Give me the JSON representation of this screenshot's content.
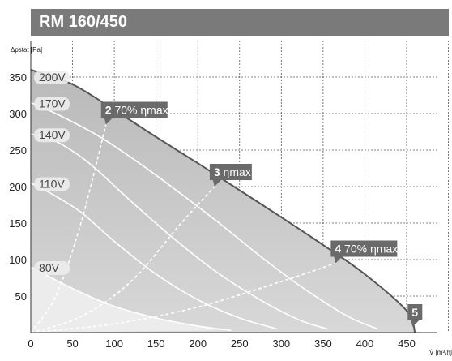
{
  "header": {
    "title": "RM 160/450"
  },
  "chart_data": {
    "type": "line",
    "title": "RM 160/450",
    "xlabel": "V̇ [m³/h]",
    "ylabel": "Δpstat [Pa]",
    "xlim": [
      0,
      480
    ],
    "ylim": [
      0,
      360
    ],
    "x_ticks": [
      0,
      50,
      100,
      150,
      200,
      250,
      300,
      350,
      400,
      450
    ],
    "y_ticks": [
      50,
      100,
      150,
      200,
      250,
      300,
      350
    ],
    "x_tick_labels": [
      "0",
      "50",
      "100",
      "150",
      "200",
      "250",
      "300",
      "350",
      "400",
      "450"
    ],
    "y_tick_labels": [
      "50",
      "100",
      "150",
      "200",
      "250",
      "300",
      "350"
    ],
    "grid": true,
    "series": [
      {
        "name": "200V",
        "x": [
          0,
          50,
          100,
          150,
          200,
          250,
          300,
          350,
          400,
          450,
          460
        ],
        "y": [
          360,
          340,
          305,
          268,
          232,
          195,
          158,
          120,
          80,
          30,
          0
        ]
      },
      {
        "name": "170V",
        "x": [
          0,
          30,
          80,
          130,
          180,
          230,
          280,
          330,
          380,
          415
        ],
        "y": [
          315,
          300,
          270,
          232,
          190,
          146,
          100,
          58,
          22,
          5
        ]
      },
      {
        "name": "140V",
        "x": [
          0,
          30,
          70,
          120,
          170,
          220,
          270,
          320,
          355
        ],
        "y": [
          272,
          262,
          232,
          180,
          130,
          85,
          48,
          18,
          5
        ]
      },
      {
        "name": "110V",
        "x": [
          0,
          25,
          60,
          100,
          150,
          200,
          250,
          295
        ],
        "y": [
          205,
          190,
          165,
          125,
          80,
          45,
          20,
          5
        ]
      },
      {
        "name": "80V",
        "x": [
          0,
          30,
          60,
          100,
          150,
          200,
          240
        ],
        "y": [
          90,
          72,
          55,
          36,
          20,
          9,
          3
        ]
      },
      {
        "name": "2 70% ηmax",
        "x": [
          0,
          30,
          60,
          90
        ],
        "y": [
          0,
          50,
          150,
          285
        ]
      },
      {
        "name": "3 ηmax",
        "x": [
          0,
          60,
          120,
          180,
          220
        ],
        "y": [
          0,
          22,
          70,
          150,
          200
        ]
      },
      {
        "name": "4 70% ηmax",
        "x": [
          0,
          100,
          200,
          300,
          365
        ],
        "y": [
          0,
          12,
          35,
          70,
          95
        ]
      }
    ],
    "annotations": [
      {
        "number": "2",
        "text": "70% ηmax",
        "x": 90,
        "y": 285
      },
      {
        "number": "3",
        "text": "ηmax",
        "x": 220,
        "y": 200
      },
      {
        "number": "4",
        "text": "70% ηmax",
        "x": 365,
        "y": 95
      },
      {
        "number": "5",
        "text": "",
        "x": 460,
        "y": 0
      }
    ]
  }
}
